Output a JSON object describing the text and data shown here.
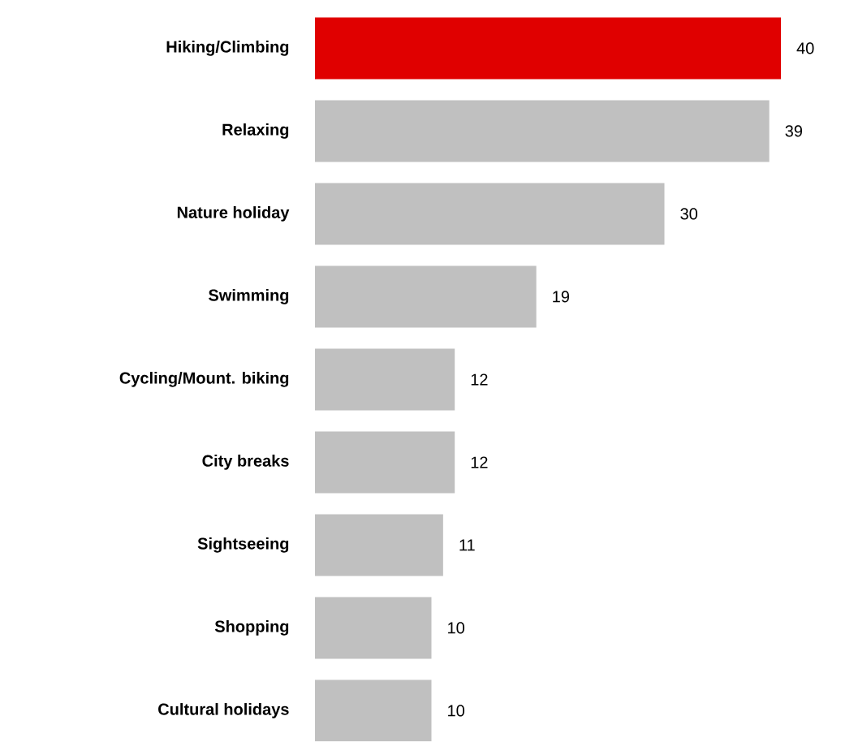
{
  "chart_data": {
    "type": "bar",
    "orientation": "horizontal",
    "categories": [
      "Hiking/Climbing",
      "Relaxing",
      "Nature holiday",
      "Swimming",
      "Cycling/Mount. biking",
      "City breaks",
      "Sightseeing",
      "Shopping",
      "Cultural holidays"
    ],
    "values": [
      40,
      39,
      30,
      19,
      12,
      12,
      11,
      10,
      10
    ],
    "colors": [
      "#e00000",
      "#c0c0c0",
      "#c0c0c0",
      "#c0c0c0",
      "#c0c0c0",
      "#c0c0c0",
      "#c0c0c0",
      "#c0c0c0",
      "#c0c0c0"
    ],
    "data_labels": true
  }
}
